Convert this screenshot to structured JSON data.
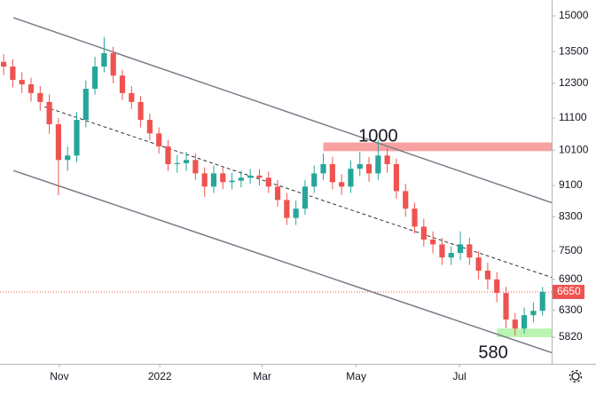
{
  "chart_data": {
    "type": "candlestick",
    "scale": "log",
    "up_color": "#26a69a",
    "down_color": "#ef5350",
    "categories": [
      null,
      null,
      null,
      null,
      null,
      null,
      null,
      null,
      null,
      null,
      null,
      null,
      null,
      null,
      null,
      null,
      null,
      null,
      null,
      null,
      null,
      null,
      null,
      null,
      null,
      null,
      null,
      null,
      null,
      null,
      null,
      null,
      null,
      null,
      null,
      null,
      null,
      null,
      null,
      null,
      null,
      null,
      null,
      null,
      null,
      null,
      null,
      null,
      null,
      null,
      null,
      null,
      null,
      null,
      null,
      null,
      null,
      null,
      null,
      null
    ],
    "open": [
      13100,
      12920,
      12420,
      12260,
      11950,
      11640,
      10900,
      9810,
      9940,
      11040,
      12100,
      12920,
      13440,
      12580,
      11950,
      11640,
      11040,
      10610,
      10210,
      9690,
      9720,
      9810,
      9430,
      9070,
      9430,
      9190,
      9230,
      9310,
      9370,
      9310,
      9070,
      8720,
      8270,
      8500,
      9070,
      9430,
      9690,
      9190,
      9070,
      9560,
      9690,
      9430,
      9940,
      9690,
      8950,
      8500,
      8060,
      7760,
      7650,
      7360,
      7460,
      7650,
      7360,
      7080,
      6900,
      6630,
      6130,
      5970,
      6210,
      6290
    ],
    "high": [
      13400,
      13200,
      12700,
      12500,
      12200,
      11900,
      11100,
      10200,
      11300,
      12400,
      13300,
      14100,
      13700,
      12800,
      12200,
      11850,
      11250,
      10800,
      10400,
      9950,
      10050,
      10000,
      9600,
      9650,
      9600,
      9450,
      9500,
      9550,
      9550,
      9480,
      9250,
      8900,
      8700,
      9250,
      9650,
      10000,
      9900,
      9400,
      9800,
      10050,
      9900,
      10400,
      10150,
      9850,
      9150,
      8650,
      8250,
      7950,
      7800,
      7600,
      7950,
      7800,
      7500,
      7250,
      7050,
      6750,
      6250,
      6350,
      6450,
      6750
    ],
    "low": [
      12600,
      12150,
      11950,
      11650,
      11350,
      10600,
      8840,
      9500,
      9750,
      10800,
      11900,
      12700,
      12300,
      11700,
      11400,
      10800,
      10400,
      10000,
      9500,
      9450,
      9500,
      9250,
      8800,
      8900,
      9000,
      9000,
      9050,
      9150,
      9100,
      8900,
      8550,
      8100,
      8100,
      8350,
      8900,
      9250,
      9000,
      8850,
      8900,
      9350,
      9200,
      9250,
      9450,
      8750,
      8300,
      7900,
      7600,
      7450,
      7200,
      7200,
      7300,
      7200,
      6900,
      6700,
      6450,
      5980,
      5850,
      5880,
      6080,
      6200
    ],
    "close": [
      12920,
      12420,
      12260,
      11950,
      11640,
      10900,
      9810,
      9940,
      11040,
      12100,
      12920,
      13440,
      12580,
      11950,
      11640,
      11040,
      10610,
      10210,
      9690,
      9720,
      9810,
      9430,
      9070,
      9430,
      9190,
      9230,
      9310,
      9370,
      9310,
      9070,
      8720,
      8270,
      8500,
      9070,
      9430,
      9690,
      9190,
      9070,
      9560,
      9690,
      9430,
      9940,
      9690,
      8950,
      8500,
      8060,
      7760,
      7650,
      7360,
      7460,
      7650,
      7360,
      7080,
      6900,
      6630,
      6130,
      5970,
      6210,
      6290,
      6650
    ],
    "xlim": [
      -0.4,
      60
    ],
    "xticks": [
      {
        "value": 6.1,
        "label": "Nov"
      },
      {
        "value": 17.1,
        "label": "2022"
      },
      {
        "value": 28.3,
        "label": "Mar"
      },
      {
        "value": 38.6,
        "label": "May"
      },
      {
        "value": 49.9,
        "label": "Jul"
      }
    ],
    "ylim": [
      5380,
      15720
    ],
    "yticks": [
      15000,
      13500,
      12300,
      11100,
      10100,
      9100,
      8300,
      7500,
      6900,
      6300,
      5820
    ],
    "last_price": 6650,
    "trend_lines": [
      {
        "from": [
          1.07,
          14920
        ],
        "to": [
          60,
          8650
        ],
        "style": "solid"
      },
      {
        "from": [
          4.47,
          11480
        ],
        "to": [
          60,
          6940
        ],
        "style": "dashed"
      },
      {
        "from": [
          1.07,
          9510
        ],
        "to": [
          60,
          5560
        ],
        "style": "solid"
      }
    ],
    "zones": [
      {
        "x": [
          35,
          60
        ],
        "y": [
          10070,
          10330
        ],
        "color": "#f7a1a1"
      },
      {
        "x": [
          54,
          60
        ],
        "y": [
          5820,
          5970
        ],
        "color": "#b9f5b0"
      }
    ],
    "annotations": [
      {
        "text": "1000",
        "x": 41,
        "y": 10500
      },
      {
        "text": "580",
        "x": 53.6,
        "y": 5550
      }
    ]
  }
}
